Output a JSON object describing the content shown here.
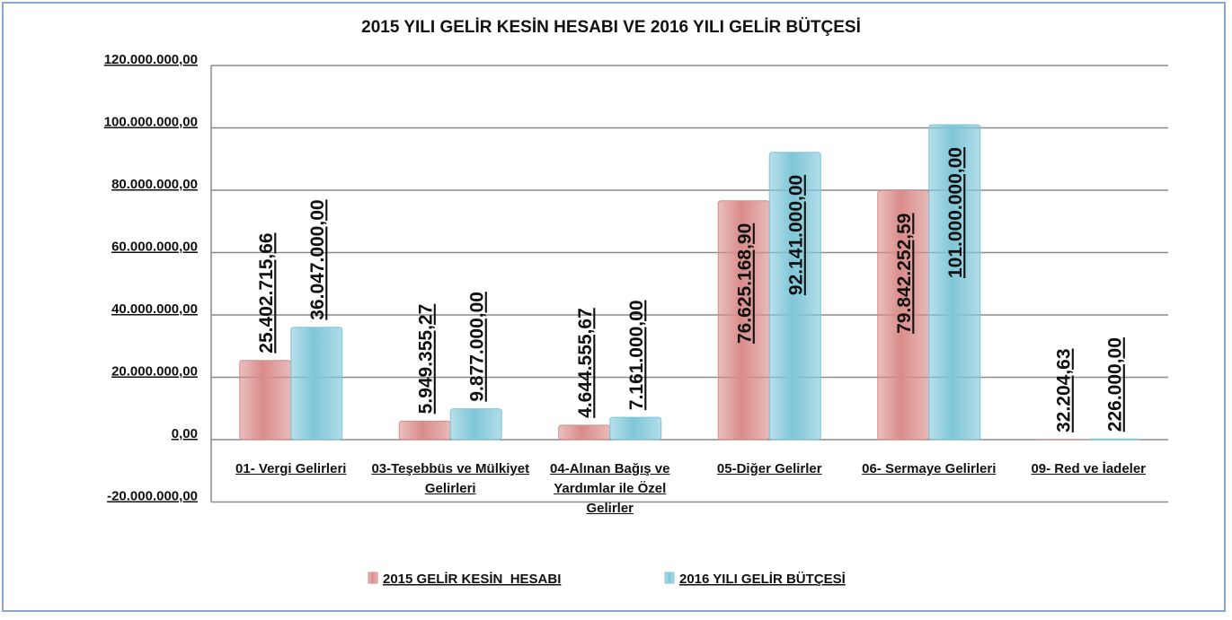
{
  "chart_data": {
    "type": "bar",
    "title": "2015 YILI GELİR KESİN HESABI VE 2016 YILI  GELİR BÜTÇESİ",
    "categories": [
      "01- Vergi Gelirleri",
      "03-Teşebbüs ve Mülkiyet Gelirleri",
      "04-Alınan Bağış ve Yardımlar ile Özel Gelirler",
      "05-Diğer Gelirler",
      "06- Sermaye Gelirleri",
      "09- Red ve İadeler"
    ],
    "series": [
      {
        "name": "2015 GELİR KESİN  HESABI",
        "color": "#d98c8a",
        "values": [
          25402715.66,
          5949355.27,
          4644555.67,
          76625168.9,
          79842252.59,
          32204.63
        ],
        "value_labels": [
          "25.402.715,66",
          "5.949.355,27",
          "4.644.555,67",
          "76.625.168,90",
          "79.842.252,59",
          "32.204,63"
        ]
      },
      {
        "name": "2016 YILI GELİR BÜTÇESİ",
        "color": "#7fc6d8",
        "values": [
          36047000,
          9877000,
          7161000,
          92141000,
          101000000,
          226000
        ],
        "value_labels": [
          "36.047.000,00",
          "9.877.000,00",
          "7.161.000,00",
          "92.141.000,00",
          "101.000.000,00",
          "226.000,00"
        ]
      }
    ],
    "ylim": [
      -20000000,
      120000000
    ],
    "yticks": [
      {
        "value": -20000000,
        "label": "-20.000.000,00"
      },
      {
        "value": 0,
        "label": "0,00"
      },
      {
        "value": 20000000,
        "label": "20.000.000,00"
      },
      {
        "value": 40000000,
        "label": "40.000.000,00"
      },
      {
        "value": 60000000,
        "label": "60.000.000,00"
      },
      {
        "value": 80000000,
        "label": "80.000.000,00"
      },
      {
        "value": 100000000,
        "label": "100.000.000,00"
      },
      {
        "value": 120000000,
        "label": "120.000.000,00"
      }
    ],
    "grid": true,
    "legend": "bottom"
  }
}
